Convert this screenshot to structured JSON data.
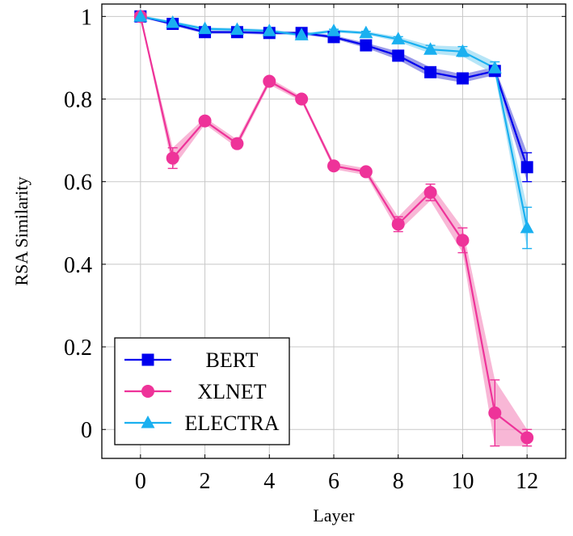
{
  "chart_data": {
    "type": "line",
    "xlabel": "Layer",
    "ylabel": "RSA Similarity",
    "xlim": [
      -1.2,
      13.2
    ],
    "ylim": [
      -0.07,
      1.03
    ],
    "xticks": [
      0,
      2,
      4,
      6,
      8,
      10,
      12
    ],
    "xtick_labels": [
      "0",
      "2",
      "4",
      "6",
      "8",
      "10",
      "12"
    ],
    "yticks": [
      0,
      0.2,
      0.4,
      0.6,
      0.8,
      1
    ],
    "ytick_labels": [
      "0",
      "0.2",
      "0.4",
      "0.6",
      "0.8",
      "1"
    ],
    "grid": true,
    "legend_position": "bottom-left",
    "x": [
      0,
      1,
      2,
      3,
      4,
      5,
      6,
      7,
      8,
      9,
      10,
      11,
      12
    ],
    "series": [
      {
        "name": "BERT",
        "color": "#0000ee",
        "band_color": "#6666dd",
        "marker": "square",
        "values": [
          1.0,
          0.982,
          0.962,
          0.962,
          0.96,
          0.96,
          0.95,
          0.93,
          0.905,
          0.865,
          0.85,
          0.868,
          0.635
        ],
        "errors": [
          0.002,
          0.004,
          0.004,
          0.004,
          0.004,
          0.004,
          0.004,
          0.006,
          0.01,
          0.012,
          0.01,
          0.01,
          0.035
        ]
      },
      {
        "name": "XLNET",
        "color": "#ee3399",
        "band_color": "#f590c0",
        "marker": "circle",
        "values": [
          1.0,
          0.657,
          0.747,
          0.692,
          0.843,
          0.8,
          0.638,
          0.624,
          0.497,
          0.574,
          0.458,
          0.04,
          -0.02
        ],
        "errors": [
          0.002,
          0.025,
          0.008,
          0.01,
          0.008,
          0.006,
          0.008,
          0.008,
          0.018,
          0.02,
          0.03,
          0.08,
          0.02
        ]
      },
      {
        "name": "ELECTRA",
        "color": "#1ab0f0",
        "band_color": "#8fd7f2",
        "marker": "triangle",
        "values": [
          1.0,
          0.985,
          0.97,
          0.968,
          0.965,
          0.955,
          0.965,
          0.96,
          0.945,
          0.92,
          0.915,
          0.875,
          0.488
        ],
        "errors": [
          0.002,
          0.004,
          0.004,
          0.004,
          0.004,
          0.004,
          0.004,
          0.004,
          0.006,
          0.01,
          0.012,
          0.015,
          0.05
        ]
      }
    ]
  }
}
